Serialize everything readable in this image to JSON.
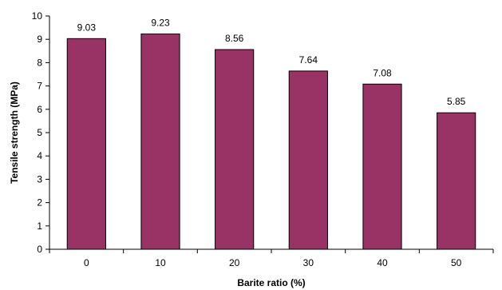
{
  "chart_data": {
    "type": "bar",
    "title": "",
    "xlabel": "Barite ratio (%)",
    "ylabel": "Tensile strength (MPa)",
    "categories": [
      "0",
      "10",
      "20",
      "30",
      "40",
      "50"
    ],
    "values": [
      9.03,
      9.23,
      8.56,
      7.64,
      7.08,
      5.85
    ],
    "data_labels": [
      "9.03",
      "9.23",
      "8.56",
      "7.64",
      "7.08",
      "5.85"
    ],
    "ylim": [
      0,
      10
    ],
    "yticks": [
      0,
      1,
      2,
      3,
      4,
      5,
      6,
      7,
      8,
      9,
      10
    ],
    "bar_color": "#993366",
    "bar_edge_color": "#000000",
    "grid": false,
    "legend": "none"
  }
}
